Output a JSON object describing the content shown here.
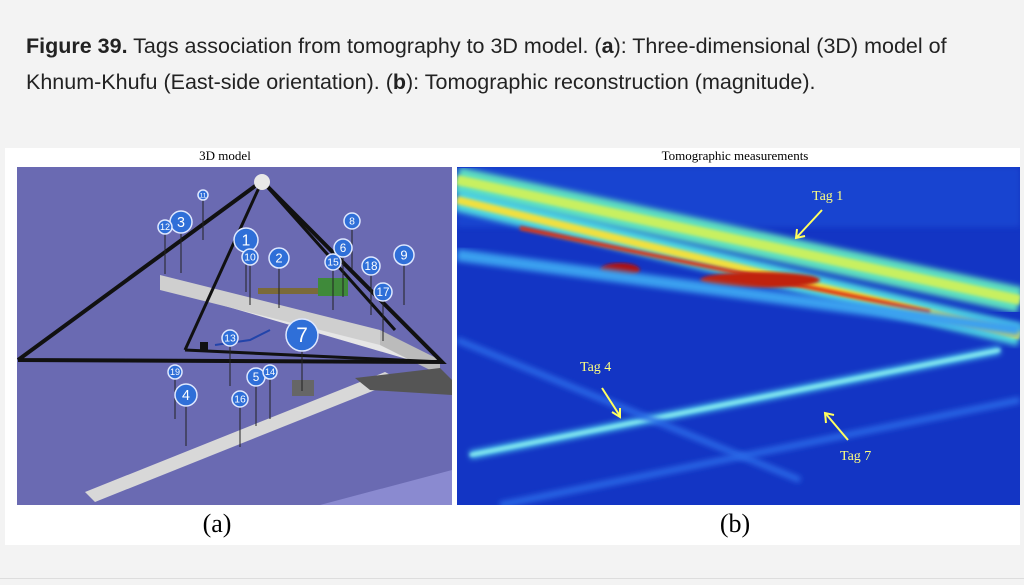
{
  "caption": {
    "label": "Figure 39.",
    "parts": [
      "Tags association from tomography to 3D model. (",
      "a",
      "): Three-dimensional (3D) model of Khnum-Khufu (East-side orientation). (",
      "b",
      "): Tomographic reconstruction (magnitude)."
    ]
  },
  "panel_a": {
    "title": "3D model",
    "label": "(a)",
    "tags": [
      "3",
      "12",
      "11",
      "1",
      "10",
      "2",
      "8",
      "6",
      "15",
      "18",
      "9",
      "17",
      "13",
      "7",
      "19",
      "5",
      "14",
      "4",
      "16"
    ]
  },
  "panel_b": {
    "title": "Tomographic measurements",
    "label": "(b)",
    "annotations": [
      "Tag 1",
      "Tag 4",
      "Tag 7"
    ]
  }
}
